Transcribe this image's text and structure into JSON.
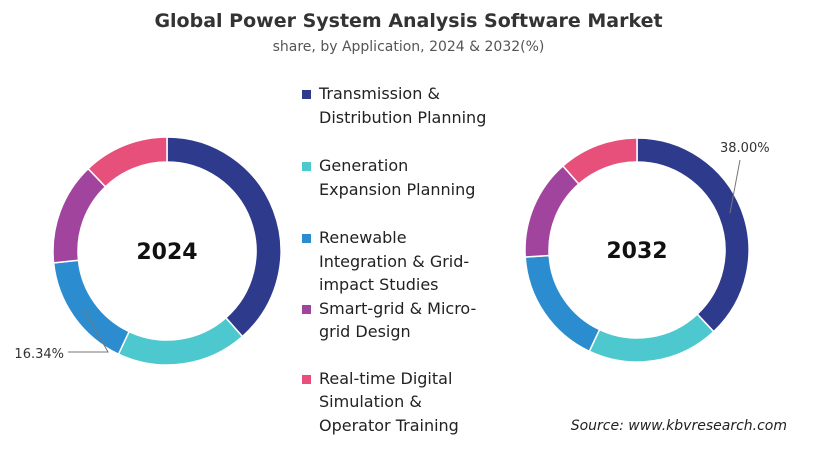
{
  "chart_data": {
    "type": "pie",
    "variant": "donut",
    "title": "Global Power System Analysis Software Market",
    "subtitle": "share, by Application, 2024 & 2032(%)",
    "categories": [
      "Transmission & Distribution Planning",
      "Generation Expansion Planning",
      "Renewable Integration & Grid-impact Studies",
      "Smart-grid & Micro-grid Design",
      "Real-time Digital Simulation & Operator Training"
    ],
    "colors": [
      "#2e3a8c",
      "#4ec8cf",
      "#2b8dcf",
      "#a0449e",
      "#e8507c"
    ],
    "legend_position": "center",
    "legend_lines": [
      [
        "Transmission &",
        "Distribution Planning"
      ],
      [
        "Generation",
        "Expansion Planning"
      ],
      [
        "Renewable",
        "Integration & Grid-",
        "impact Studies"
      ],
      [
        "Smart-grid & Micro-",
        "grid Design"
      ],
      [
        "Real-time Digital",
        "Simulation &",
        "Operator Training"
      ]
    ],
    "donuts": [
      {
        "label": "2024",
        "values": [
          38.5,
          18.5,
          16.34,
          14.5,
          12.16
        ],
        "annotation": {
          "series_index": 2,
          "text": "16.34%"
        }
      },
      {
        "label": "2032",
        "values": [
          38.0,
          19.0,
          17.0,
          14.5,
          11.5
        ],
        "annotation": {
          "series_index": 0,
          "text": "38.00%"
        }
      }
    ]
  },
  "source": "Source: www.kbvresearch.com"
}
